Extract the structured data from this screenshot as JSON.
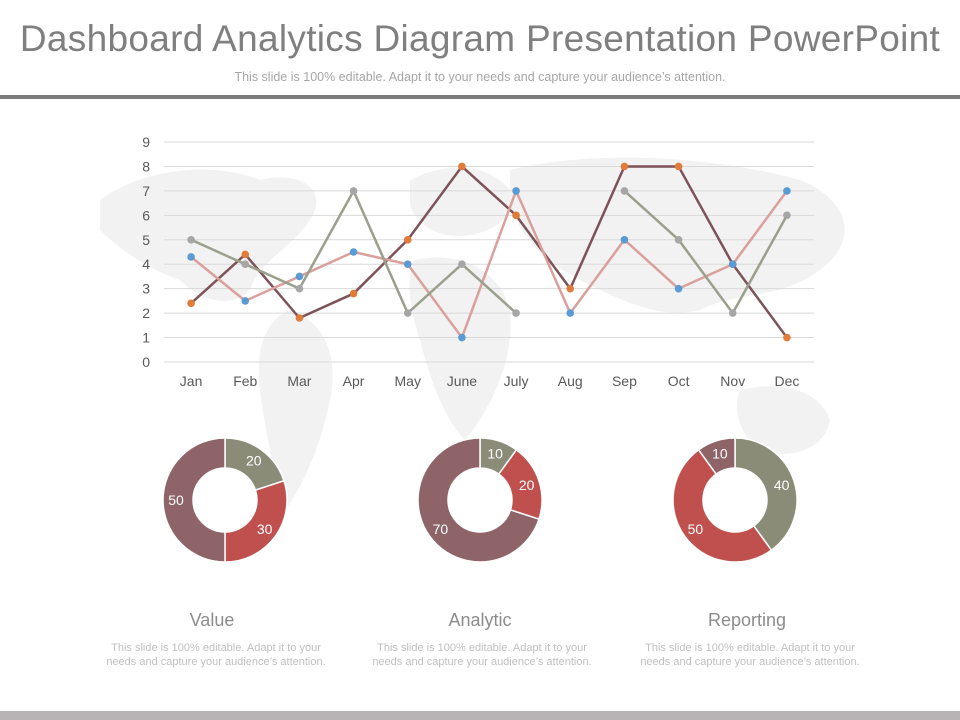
{
  "header": {
    "title": "Dashboard Analytics Diagram Presentation PowerPoint",
    "subtitle": "This slide is 100% editable. Adapt it to your needs and capture your audience’s attention."
  },
  "colors": {
    "orange": "#e07b39",
    "blue": "#5b9bd5",
    "gray": "#a6a6a6",
    "rose": "#d9a09c",
    "sage": "#9aa08c",
    "maroon": "#7d5358",
    "olive": "#8a8c78",
    "red": "#c0504d",
    "mauve": "#8e6469"
  },
  "chart_data": [
    {
      "type": "line",
      "categories": [
        "Jan",
        "Feb",
        "Mar",
        "Apr",
        "May",
        "June",
        "July",
        "Aug",
        "Sep",
        "Oct",
        "Nov",
        "Dec"
      ],
      "ylim": [
        0,
        9
      ],
      "yticks": [
        0,
        1,
        2,
        3,
        4,
        5,
        6,
        7,
        8,
        9
      ],
      "grid": true,
      "series": [
        {
          "line_color": "#7d5358",
          "marker_color": "#e07b39",
          "values": [
            2.4,
            4.4,
            1.8,
            2.8,
            5,
            8,
            6,
            3,
            8,
            8,
            4,
            1
          ]
        },
        {
          "line_color": "#d9a09c",
          "marker_color": "#5b9bd5",
          "values": [
            4.3,
            2.5,
            3.5,
            4.5,
            4,
            1,
            7,
            2,
            5,
            3,
            4,
            7
          ]
        },
        {
          "line_color": "#9aa08c",
          "marker_color": "#a6a6a6",
          "values": [
            5,
            4,
            3,
            7,
            2,
            4,
            2,
            null,
            7,
            5,
            2,
            6
          ]
        }
      ]
    },
    {
      "type": "pie",
      "title": "Value",
      "values": [
        20,
        30,
        50
      ],
      "labels": [
        "20",
        "30",
        "50"
      ],
      "colors": [
        "#8a8c78",
        "#c0504d",
        "#8e6469"
      ],
      "description": "This slide is 100% editable. Adapt it to your needs and capture your audience’s attention."
    },
    {
      "type": "pie",
      "title": "Analytic",
      "values": [
        10,
        20,
        70
      ],
      "labels": [
        "10",
        "20",
        "70"
      ],
      "colors": [
        "#8a8c78",
        "#c0504d",
        "#8e6469"
      ],
      "description": "This slide is 100% editable. Adapt it to your needs and capture your audience’s attention."
    },
    {
      "type": "pie",
      "title": "Reporting",
      "values": [
        40,
        50,
        10
      ],
      "labels": [
        "40",
        "50",
        "10"
      ],
      "colors": [
        "#8a8c78",
        "#c0504d",
        "#8e6469"
      ],
      "description": "This slide is 100% editable. Adapt it to your needs and capture your audience’s attention."
    }
  ]
}
